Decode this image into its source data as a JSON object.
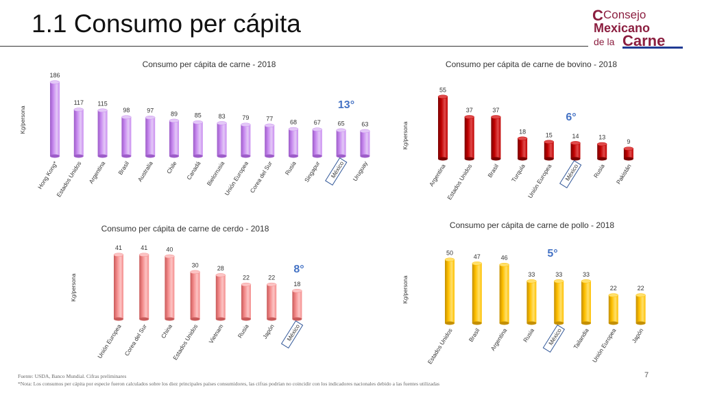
{
  "header": {
    "title": "1.1 Consumo per cápita"
  },
  "logo": {
    "line1": "Consejo",
    "line2": "Mexicano",
    "line3a": "de la",
    "line3b": "Carne"
  },
  "chart_data": [
    {
      "type": "bar",
      "title": "Consumo per cápita de carne - 2018",
      "ylabel": "Kg/persona",
      "categories": [
        "Hong Kong*",
        "Estados Unidos",
        "Argentina",
        "Brasil",
        "Australia",
        "Chile",
        "Canadá",
        "Bielorrusia",
        "Unión Europea",
        "Corea del Sur",
        "Rusia",
        "Singapur",
        "México",
        "Uruguay"
      ],
      "values": [
        186,
        117,
        115,
        98,
        97,
        89,
        85,
        83,
        79,
        77,
        68,
        67,
        65,
        63
      ],
      "ylim": [
        0,
        200
      ],
      "grid": false,
      "highlight": "México",
      "rank_annotation": "13°",
      "colors": {
        "top": "#e3c8f7",
        "body": "#c98cf0",
        "dark": "#9d5cc9"
      }
    },
    {
      "type": "bar",
      "title": "Consumo per cápita de carne de bovino - 2018",
      "ylabel": "Kg/persona",
      "categories": [
        "Argentina",
        "Estados Unidos",
        "Brasil",
        "Turquía",
        "Unión Europea",
        "México",
        "Rusia",
        "Pakistán"
      ],
      "values": [
        55,
        37,
        37,
        18,
        15,
        14,
        13,
        9
      ],
      "ylim": [
        0,
        60
      ],
      "grid": false,
      "highlight": "México",
      "rank_annotation": "6°",
      "colors": {
        "top": "#e04a4a",
        "body": "#c00000",
        "dark": "#7a0000"
      }
    },
    {
      "type": "bar",
      "title": "Consumo per cápita de carne de cerdo - 2018",
      "ylabel": "Kg/persona",
      "categories": [
        "Unión Europea",
        "Corea del Sur",
        "China",
        "Estados Unidos",
        "Vietnam",
        "Rusia",
        "Japón",
        "México"
      ],
      "values": [
        41,
        41,
        40,
        30,
        28,
        22,
        22,
        18
      ],
      "ylim": [
        0,
        45
      ],
      "grid": false,
      "highlight": "México",
      "rank_annotation": "8°",
      "colors": {
        "top": "#fcc4c4",
        "body": "#f48c8c",
        "dark": "#c95a5a"
      }
    },
    {
      "type": "bar",
      "title": "Consumo per cápita de carne de pollo - 2018",
      "ylabel": "Kg/persona",
      "categories": [
        "Estados Unidos",
        "Brasil",
        "Argentina",
        "Rusia",
        "México",
        "Tailandia",
        "Unión Europea",
        "Japón"
      ],
      "values": [
        50,
        47,
        46,
        33,
        33,
        33,
        22,
        22
      ],
      "ylim": [
        0,
        55
      ],
      "grid": false,
      "highlight": "México",
      "rank_annotation": "5°",
      "colors": {
        "top": "#ffe06b",
        "body": "#ffc000",
        "dark": "#c48f00"
      }
    }
  ],
  "footer": {
    "source": "Fuente: USDA, Banco Mundial. Cifras preliminares",
    "note": "*Nota: Los consumos per cápita por especie fueron calculados sobre los diez principales países consumidores, las cifras podrían no coincidir con los indicadores nacionales debido a las fuentes utilizadas"
  },
  "page_number": "7",
  "style": {
    "title_color": "#333333",
    "rank_color": "#4472c4",
    "highlight_box": "#2f5597",
    "logo_primary": "#8b1e3f",
    "logo_blue": "#1f3a93"
  }
}
